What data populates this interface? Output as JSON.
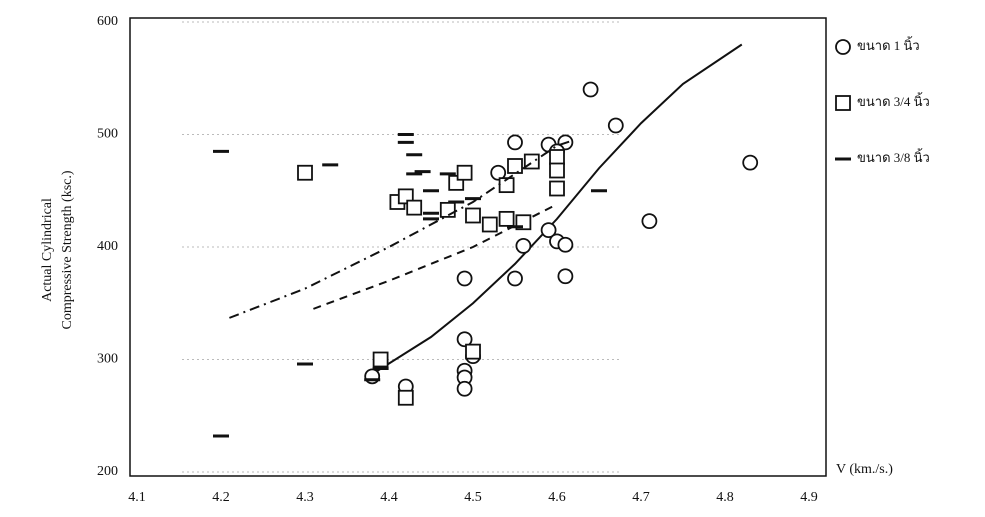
{
  "chart_data": {
    "type": "scatter",
    "y_label": [
      "Actual Cylindrical",
      "Compressive Strength (ksc.)"
    ],
    "x_label": "V (km./s.)",
    "xlim": [
      4.1,
      4.9
    ],
    "xticks": [
      4.1,
      4.2,
      4.3,
      4.4,
      4.5,
      4.6,
      4.7,
      4.8,
      4.9
    ],
    "ylim": [
      200,
      600
    ],
    "yticks": [
      200,
      300,
      400,
      500,
      600
    ],
    "grid": true,
    "legend": "right",
    "series": [
      {
        "name": "ขนาด 1 นิ้ว",
        "marker": "circle",
        "color": "#111111",
        "x": [
          4.38,
          4.42,
          4.49,
          4.49,
          4.49,
          4.49,
          4.5,
          4.49,
          4.53,
          4.55,
          4.56,
          4.55,
          4.59,
          4.59,
          4.6,
          4.61,
          4.61,
          4.61,
          4.64,
          4.67,
          4.71,
          4.83,
          4.6
        ],
        "values": [
          285,
          276,
          318,
          290,
          284,
          274,
          303,
          372,
          466,
          493,
          401,
          372,
          491,
          415,
          405,
          402,
          374,
          493,
          540,
          508,
          423,
          475,
          485
        ],
        "trend": {
          "style": "solid",
          "x": [
            4.38,
            4.45,
            4.5,
            4.55,
            4.6,
            4.65,
            4.7,
            4.75,
            4.82
          ],
          "values": [
            287,
            320,
            350,
            385,
            425,
            470,
            510,
            545,
            580
          ]
        }
      },
      {
        "name": "ขนาด 3/4 นิ้ว",
        "marker": "square",
        "color": "#111111",
        "x": [
          4.3,
          4.39,
          4.42,
          4.41,
          4.42,
          4.43,
          4.47,
          4.48,
          4.49,
          4.5,
          4.5,
          4.54,
          4.54,
          4.56,
          4.55,
          4.57,
          4.6,
          4.6,
          4.6,
          4.52
        ],
        "values": [
          466,
          300,
          266,
          440,
          445,
          435,
          433,
          457,
          466,
          428,
          307,
          455,
          425,
          422,
          472,
          476,
          480,
          468,
          452,
          420
        ],
        "trend": {
          "style": "dashed",
          "x": [
            4.31,
            4.4,
            4.5,
            4.6
          ],
          "values": [
            345,
            370,
            400,
            438
          ]
        }
      },
      {
        "name": "ขนาด 3/8 นิ้ว",
        "marker": "dash",
        "color": "#111111",
        "x": [
          4.2,
          4.2,
          4.3,
          4.33,
          4.38,
          4.39,
          4.42,
          4.42,
          4.43,
          4.43,
          4.44,
          4.45,
          4.45,
          4.45,
          4.47,
          4.48,
          4.5,
          4.55,
          4.65
        ],
        "values": [
          485,
          232,
          296,
          473,
          282,
          292,
          493,
          500,
          465,
          482,
          467,
          450,
          430,
          425,
          465,
          440,
          443,
          418,
          450
        ],
        "trend": {
          "style": "dashdot",
          "x": [
            4.21,
            4.3,
            4.4,
            4.5,
            4.6,
            4.62
          ],
          "values": [
            337,
            363,
            400,
            440,
            490,
            495
          ]
        }
      }
    ]
  }
}
